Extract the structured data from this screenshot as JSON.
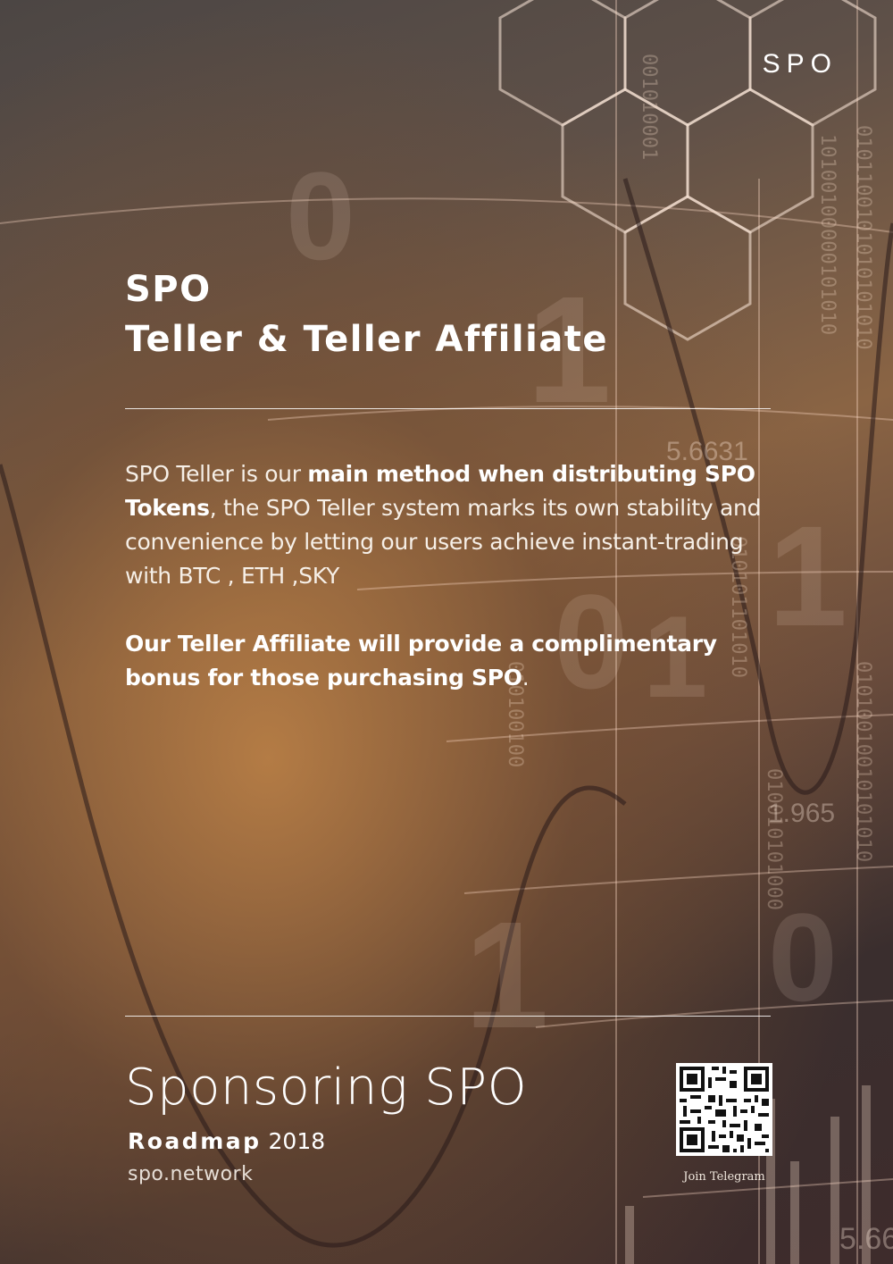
{
  "brand": {
    "logo_text": "SPO"
  },
  "header": {
    "title_line1": "SPO",
    "title_line2": "Teller & Teller Affiliate"
  },
  "body": {
    "p1_a": "SPO Teller is our ",
    "p1_b": "main method when distributing SPO Tokens",
    "p1_c": ", the SPO Teller system marks its own stability and convenience by letting our users achieve instant-trading with BTC , ETH ,SKY",
    "p2_a": "Our Teller Affiliate will provide a complimentary bonus for those purchasing SPO",
    "p2_b": "."
  },
  "footer": {
    "headline": "Sponsoring SPO",
    "roadmap_label": "Roadmap",
    "roadmap_year": "2018",
    "website": "spo.network",
    "qr_caption": "Join Telegram"
  },
  "background_text": {
    "value_a": "5.6631",
    "value_b": "1.965",
    "value_c": "5.66"
  }
}
